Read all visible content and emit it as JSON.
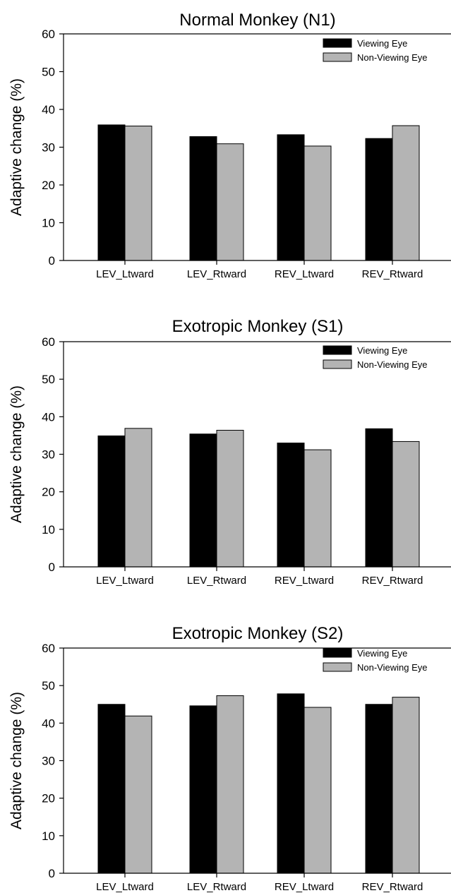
{
  "chart_data": [
    {
      "type": "bar",
      "title": "Normal Monkey (N1)",
      "ylabel": "Adaptive change (%)",
      "xlabel": "",
      "ylim": [
        0,
        60
      ],
      "yticks": [
        0,
        10,
        20,
        30,
        40,
        50,
        60
      ],
      "categories": [
        "LEV_Ltward",
        "LEV_Rtward",
        "REV_Ltward",
        "REV_Rtward"
      ],
      "series": [
        {
          "name": "Viewing Eye",
          "color": "#000000",
          "values": [
            35.9,
            32.8,
            33.3,
            32.3
          ]
        },
        {
          "name": "Non-Viewing Eye",
          "color": "#b4b4b4",
          "values": [
            35.6,
            30.9,
            30.3,
            35.7
          ]
        }
      ],
      "legend": "top-right",
      "grid": false
    },
    {
      "type": "bar",
      "title": "Exotropic Monkey (S1)",
      "ylabel": "Adaptive change (%)",
      "xlabel": "",
      "ylim": [
        0,
        60
      ],
      "yticks": [
        0,
        10,
        20,
        30,
        40,
        50,
        60
      ],
      "categories": [
        "LEV_Ltward",
        "LEV_Rtward",
        "REV_Ltward",
        "REV_Rtward"
      ],
      "series": [
        {
          "name": "Viewing Eye",
          "color": "#000000",
          "values": [
            34.9,
            35.4,
            33.0,
            36.8
          ]
        },
        {
          "name": "Non-Viewing Eye",
          "color": "#b4b4b4",
          "values": [
            36.9,
            36.4,
            31.2,
            33.4
          ]
        }
      ],
      "legend": "top-right",
      "grid": false
    },
    {
      "type": "bar",
      "title": "Exotropic Monkey (S2)",
      "ylabel": "Adaptive change (%)",
      "xlabel": "",
      "ylim": [
        0,
        60
      ],
      "yticks": [
        0,
        10,
        20,
        30,
        40,
        50,
        60
      ],
      "categories": [
        "LEV_Ltward",
        "LEV_Rtward",
        "REV_Ltward",
        "REV_Rtward"
      ],
      "series": [
        {
          "name": "Viewing Eye",
          "color": "#000000",
          "values": [
            45.0,
            44.6,
            47.8,
            45.0
          ]
        },
        {
          "name": "Non-Viewing Eye",
          "color": "#b4b4b4",
          "values": [
            41.9,
            47.3,
            44.2,
            46.9
          ]
        }
      ],
      "legend": "top-right",
      "grid": false
    }
  ]
}
